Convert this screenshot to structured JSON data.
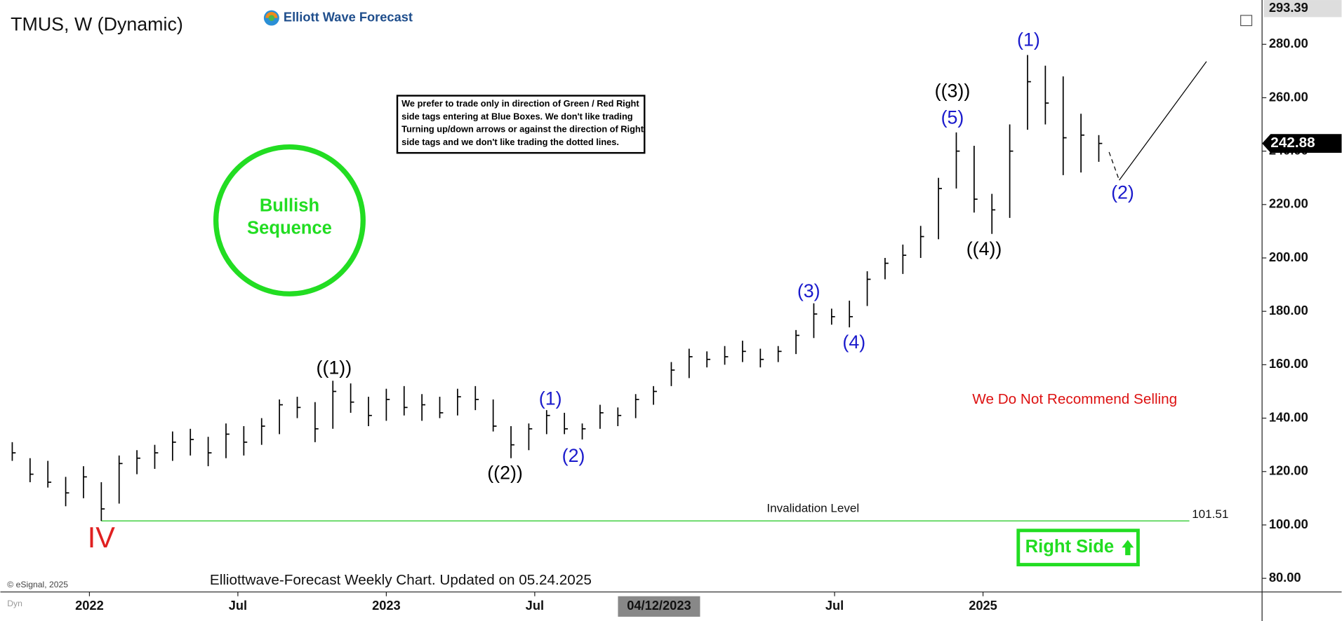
{
  "chart_data": {
    "type": "ohlc",
    "title": "TMUS, W (Dynamic)",
    "brand": "Elliott Wave Forecast",
    "color": "#000000",
    "x": [
      2021.74,
      2021.8,
      2021.86,
      2021.92,
      2021.98,
      2022.04,
      2022.1,
      2022.16,
      2022.22,
      2022.28,
      2022.34,
      2022.4,
      2022.46,
      2022.52,
      2022.58,
      2022.64,
      2022.7,
      2022.76,
      2022.82,
      2022.88,
      2022.94,
      2023.0,
      2023.06,
      2023.12,
      2023.18,
      2023.24,
      2023.3,
      2023.36,
      2023.42,
      2023.48,
      2023.54,
      2023.6,
      2023.66,
      2023.72,
      2023.78,
      2023.84,
      2023.9,
      2023.96,
      2024.02,
      2024.08,
      2024.14,
      2024.2,
      2024.26,
      2024.32,
      2024.38,
      2024.44,
      2024.5,
      2024.56,
      2024.62,
      2024.68,
      2024.74,
      2024.8,
      2024.86,
      2024.92,
      2024.98,
      2025.04,
      2025.1,
      2025.16,
      2025.22,
      2025.28,
      2025.34,
      2025.4
    ],
    "high": [
      131,
      125,
      124,
      118,
      122,
      116,
      126,
      128,
      130,
      135,
      136,
      133,
      138,
      137,
      140,
      147,
      148,
      146,
      154,
      153,
      148,
      151,
      152,
      149,
      148,
      151,
      152,
      147,
      137,
      138,
      143,
      142,
      138,
      145,
      144,
      149,
      152,
      161,
      166,
      165,
      167,
      169,
      166,
      167,
      173,
      183,
      181,
      184,
      195,
      200,
      205,
      212,
      230,
      247,
      242,
      224,
      250,
      276,
      272,
      268,
      254,
      246
    ],
    "low": [
      124,
      116,
      114,
      107,
      110,
      101.5,
      108,
      119,
      121,
      124,
      126,
      122,
      125,
      126,
      130,
      134,
      140,
      131,
      136,
      142,
      137,
      139,
      141,
      139,
      140,
      141,
      143,
      135,
      125,
      128,
      134,
      134,
      132,
      136,
      137,
      140,
      145,
      152,
      155,
      159,
      160,
      161,
      159,
      161,
      164,
      170,
      175,
      174,
      182,
      192,
      194,
      200,
      207,
      226,
      217,
      209,
      215,
      248,
      250,
      231,
      232,
      236
    ],
    "values": [
      127,
      119,
      116,
      112,
      118,
      106,
      123,
      125,
      127,
      131,
      132,
      127,
      134,
      131,
      137,
      145,
      144,
      136,
      150,
      146,
      141,
      147,
      144,
      145,
      142,
      148,
      147,
      137,
      130,
      136,
      141,
      136,
      136,
      142,
      141,
      147,
      150,
      158,
      163,
      162,
      163,
      165,
      162,
      165,
      171,
      179,
      178,
      178,
      192,
      198,
      201,
      208,
      226,
      240,
      222,
      218,
      240,
      266,
      258,
      245,
      246,
      242.88
    ],
    "xlim": [
      2021.7,
      2025.95
    ],
    "xticks": [
      {
        "value": 2022,
        "label": "2022"
      },
      {
        "value": 2022.5,
        "label": "Jul"
      },
      {
        "value": 2023,
        "label": "2023"
      },
      {
        "value": 2023.5,
        "label": "Jul"
      },
      {
        "value": 2024.51,
        "label": "Jul"
      },
      {
        "value": 2025.01,
        "label": "2025"
      }
    ],
    "cursor_label": "04/12/2023",
    "ylim": [
      74.9,
      296.6
    ],
    "yticks": [
      {
        "value": 80,
        "label": "80.00"
      },
      {
        "value": 100,
        "label": "100.00"
      },
      {
        "value": 120,
        "label": "120.00"
      },
      {
        "value": 140,
        "label": "140.00"
      },
      {
        "value": 160,
        "label": "160.00"
      },
      {
        "value": 180,
        "label": "180.00"
      },
      {
        "value": 200,
        "label": "200.00"
      },
      {
        "value": 220,
        "label": "220.00"
      },
      {
        "value": 240,
        "label": "240.00"
      },
      {
        "value": 260,
        "label": "260.00"
      },
      {
        "value": 280,
        "label": "280.00"
      }
    ],
    "grid": false,
    "top_price": 293.39,
    "last_price": 242.88,
    "invalidation": {
      "value": 101.51,
      "text": "Invalidation Level",
      "color": "#33cc33"
    },
    "wave_labels": [
      {
        "text": "IV",
        "color": "#e02020"
      },
      {
        "text": "((1))",
        "color": "#000000"
      },
      {
        "text": "((2))",
        "color": "#000000"
      },
      {
        "text": "(1)",
        "color": "#1a1acc"
      },
      {
        "text": "(2)",
        "color": "#1a1acc"
      },
      {
        "text": "(3)",
        "color": "#1a1acc"
      },
      {
        "text": "(4)",
        "color": "#1a1acc"
      },
      {
        "text": "(5)",
        "color": "#1a1acc"
      },
      {
        "text": "((3))",
        "color": "#000000"
      },
      {
        "text": "((4))",
        "color": "#000000"
      },
      {
        "text": "(1)",
        "color": "#1a1acc"
      },
      {
        "text": "(2)",
        "color": "#1a1acc"
      }
    ],
    "disclaimer": [
      "We prefer to trade only in direction of Green / Red Right",
      "side tags entering at Blue Boxes. We don't like trading",
      "Turning up/down arrows or against the direction of Right",
      "side tags and we don't like trading the dotted lines."
    ],
    "sequence": [
      "Bullish",
      "Sequence"
    ],
    "recommendation": "We Do Not Recommend Selling",
    "right_side": "Right Side",
    "footer": "Elliottwave-Forecast Weekly Chart. Updated on 05.24.2025",
    "copyright": "© eSignal, 2025",
    "mode_label": "Dyn"
  }
}
